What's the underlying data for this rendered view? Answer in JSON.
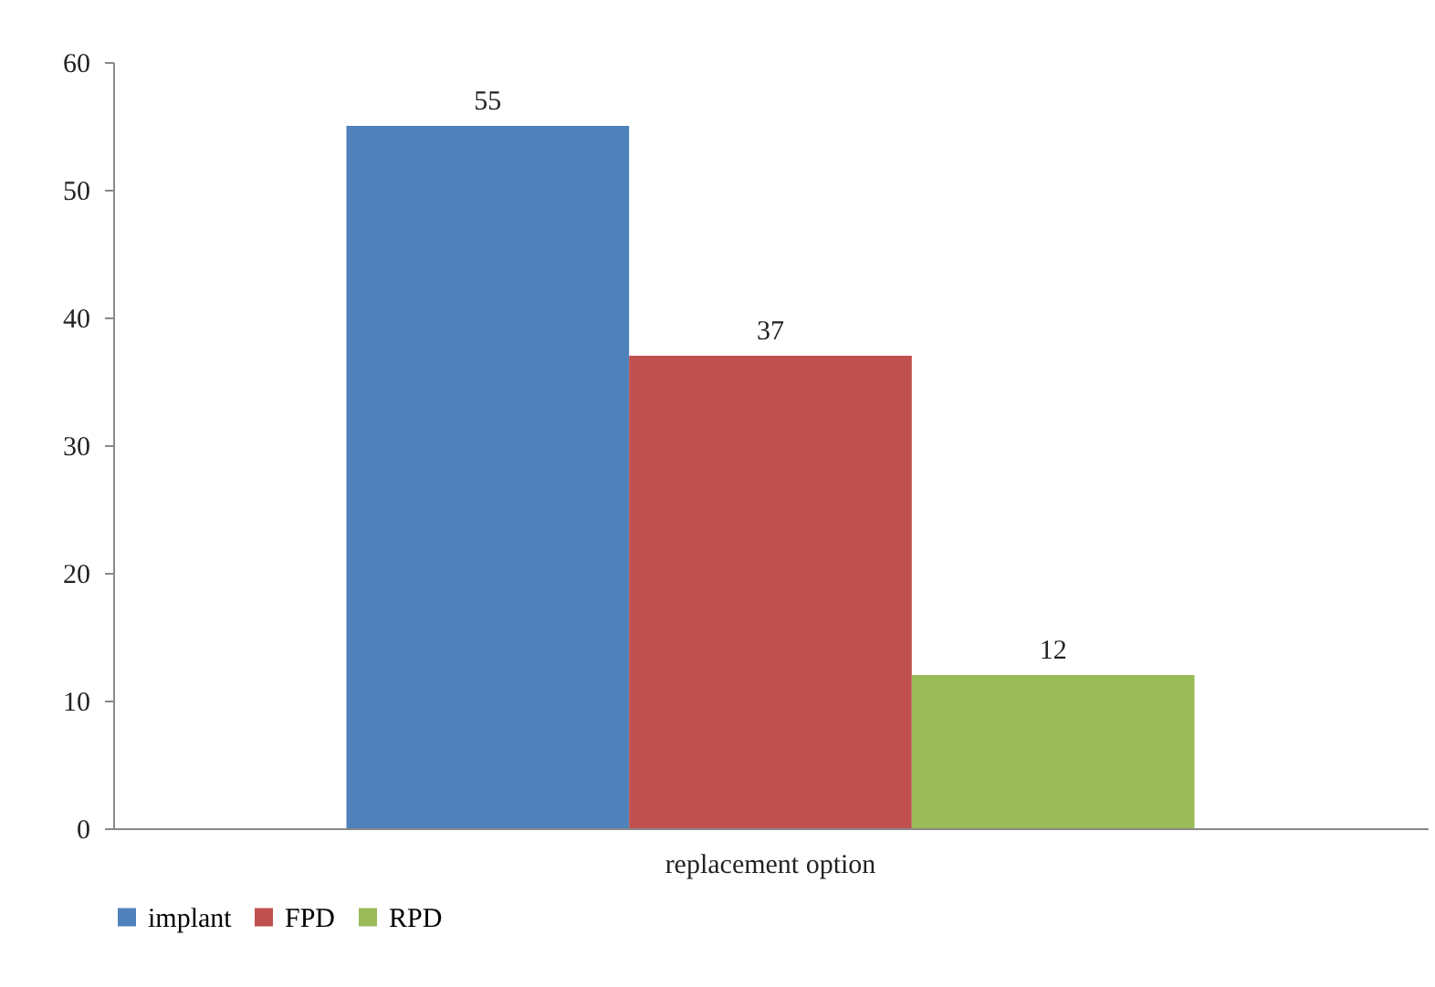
{
  "chart_data": {
    "type": "bar",
    "categories": [
      "replacement option"
    ],
    "series": [
      {
        "name": "implant",
        "color": "#4f81bd",
        "values": [
          55
        ]
      },
      {
        "name": "FPD",
        "color": "#c0504d",
        "values": [
          37
        ]
      },
      {
        "name": "RPD",
        "color": "#9bbb59",
        "values": [
          12
        ]
      }
    ],
    "ylim": [
      0,
      60
    ],
    "yticks": [
      0,
      10,
      20,
      30,
      40,
      50,
      60
    ],
    "grid": false,
    "legend": "bottom",
    "data_labels": true
  }
}
